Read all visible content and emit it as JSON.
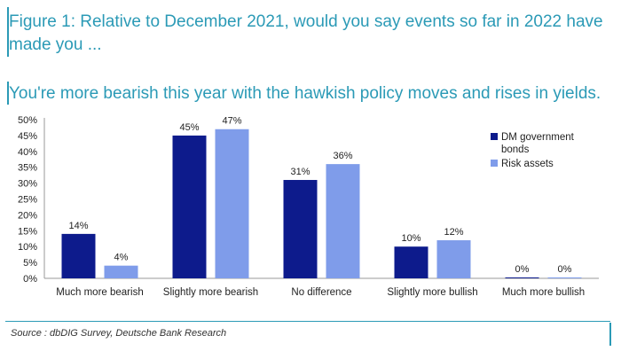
{
  "header": {
    "title": "Figure 1: Relative to December 2021, would you say events so far in 2022 have made you ...",
    "subtitle": "You're more bearish this year with the hawkish policy moves and rises in yields."
  },
  "footer": {
    "source": "Source : dbDIG Survey, Deutsche Bank Research"
  },
  "colors": {
    "accent": "#2b9ab6",
    "dm_bonds": "#0d1b8c",
    "risk_assets": "#7f9cea"
  },
  "chart_data": {
    "type": "bar",
    "categories": [
      "Much more bearish",
      "Slightly more bearish",
      "No difference",
      "Slightly more bullish",
      "Much more bullish"
    ],
    "series": [
      {
        "name": "DM government bonds",
        "values": [
          14,
          45,
          31,
          10,
          0
        ],
        "labels": [
          "14%",
          "45%",
          "31%",
          "10%",
          "0%"
        ],
        "color": "#0d1b8c"
      },
      {
        "name": "Risk assets",
        "values": [
          4,
          47,
          36,
          12,
          0
        ],
        "labels": [
          "4%",
          "47%",
          "36%",
          "12%",
          "0%"
        ],
        "color": "#7f9cea"
      }
    ],
    "yticks": [
      "0%",
      "5%",
      "10%",
      "15%",
      "20%",
      "25%",
      "30%",
      "35%",
      "40%",
      "45%",
      "50%"
    ],
    "ylim": [
      0,
      50
    ],
    "grid": false,
    "legend_position": "top-right"
  }
}
